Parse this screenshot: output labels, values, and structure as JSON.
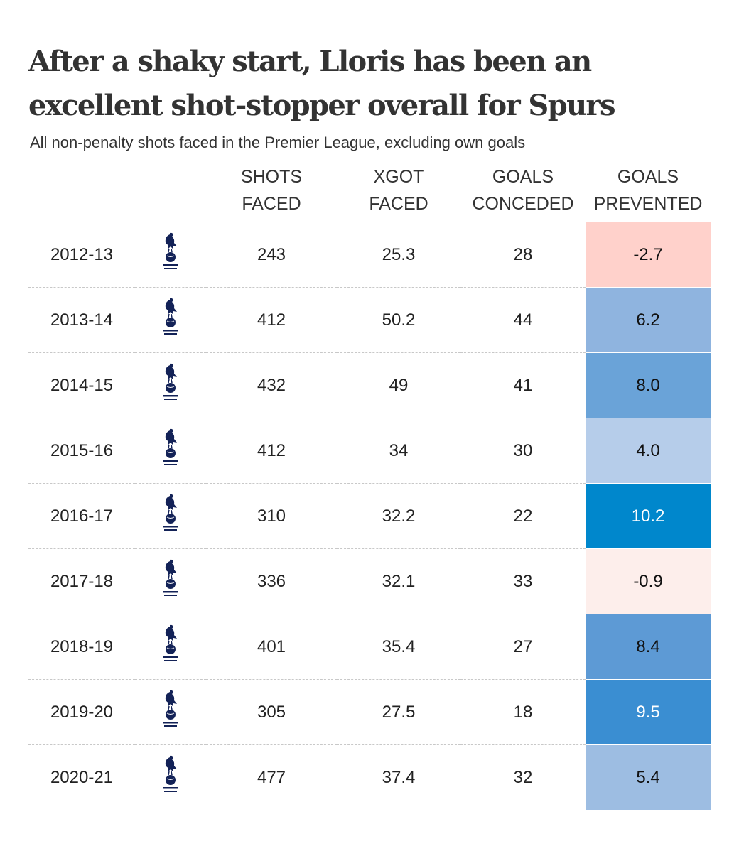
{
  "header": {
    "title": "After a shaky start, Lloris has been an excellent shot-stopper overall for Spurs",
    "subtitle": "All non-penalty shots faced in the Premier League, excluding own goals"
  },
  "table": {
    "columns": [
      "SHOTS FACED",
      "XGOT FACED",
      "GOALS CONCEDED",
      "GOALS PREVENTED"
    ],
    "rows": [
      {
        "season": "2012-13",
        "shots_faced": "243",
        "xgot_faced": "25.3",
        "goals_conceded": "28",
        "goals_prevented": "-2.7",
        "color": "#ffd1cb"
      },
      {
        "season": "2013-14",
        "shots_faced": "412",
        "xgot_faced": "50.2",
        "goals_conceded": "44",
        "goals_prevented": "6.2",
        "color": "#8fb4df"
      },
      {
        "season": "2014-15",
        "shots_faced": "432",
        "xgot_faced": "49",
        "goals_conceded": "41",
        "goals_prevented": "8.0",
        "color": "#6aa3d8"
      },
      {
        "season": "2015-16",
        "shots_faced": "412",
        "xgot_faced": "34",
        "goals_conceded": "30",
        "goals_prevented": "4.0",
        "color": "#b6cdea"
      },
      {
        "season": "2016-17",
        "shots_faced": "310",
        "xgot_faced": "32.2",
        "goals_conceded": "22",
        "goals_prevented": "10.2",
        "color": "#0087cc"
      },
      {
        "season": "2017-18",
        "shots_faced": "336",
        "xgot_faced": "32.1",
        "goals_conceded": "33",
        "goals_prevented": "-0.9",
        "color": "#fdeeeb"
      },
      {
        "season": "2018-19",
        "shots_faced": "401",
        "xgot_faced": "35.4",
        "goals_conceded": "27",
        "goals_prevented": "8.4",
        "color": "#5d9ad5"
      },
      {
        "season": "2019-20",
        "shots_faced": "305",
        "xgot_faced": "27.5",
        "goals_conceded": "18",
        "goals_prevented": "9.5",
        "color": "#3a8ed2"
      },
      {
        "season": "2020-21",
        "shots_faced": "477",
        "xgot_faced": "37.4",
        "goals_conceded": "32",
        "goals_prevented": "5.4",
        "color": "#9dbde2"
      }
    ]
  }
}
